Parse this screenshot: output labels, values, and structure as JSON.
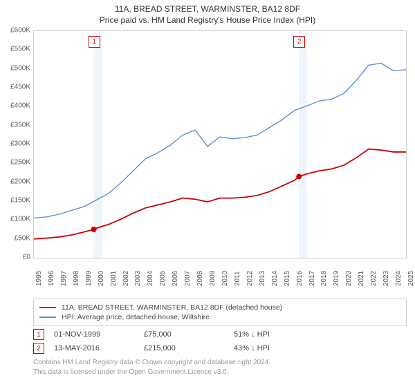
{
  "title_line1": "11A, BREAD STREET, WARMINSTER, BA12 8DF",
  "title_line2": "Price paid vs. HM Land Registry's House Price Index (HPI)",
  "chart": {
    "type": "line",
    "background_color": "#ffffff",
    "border_color": "#cccccc",
    "x_axis": {
      "min_year": 1995,
      "max_year": 2025,
      "ticks": [
        1995,
        1996,
        1997,
        1998,
        1999,
        2000,
        2001,
        2002,
        2003,
        2004,
        2005,
        2006,
        2007,
        2008,
        2009,
        2010,
        2011,
        2012,
        2013,
        2014,
        2015,
        2016,
        2017,
        2018,
        2019,
        2020,
        2021,
        2022,
        2023,
        2024,
        2025
      ],
      "label_fontsize": 10,
      "label_color": "#555555"
    },
    "y_axis": {
      "min": 0,
      "max": 600000,
      "tick_step": 50000,
      "tick_labels": [
        "£0",
        "£50K",
        "£100K",
        "£150K",
        "£200K",
        "£250K",
        "£300K",
        "£350K",
        "£400K",
        "£450K",
        "£500K",
        "£550K",
        "£600K"
      ],
      "label_fontsize": 10,
      "label_color": "#555555"
    },
    "shade_bands": [
      {
        "x_start": 1999.83,
        "x_end": 2000.5,
        "color": "#eef4fb"
      },
      {
        "x_start": 2016.37,
        "x_end": 2017.0,
        "color": "#eef4fb"
      }
    ],
    "markers": [
      {
        "id": 1,
        "year": 1999.83,
        "value": 75000,
        "color": "#cc0000"
      },
      {
        "id": 2,
        "year": 2016.37,
        "value": 215000,
        "color": "#cc0000"
      }
    ],
    "marker_radius": 4,
    "badge_border": "#cc0000",
    "badge_text_color": "#cc0000",
    "series": [
      {
        "name": "property",
        "color": "#cc0000",
        "width": 1.8,
        "points": [
          [
            1995,
            50000
          ],
          [
            1996,
            52000
          ],
          [
            1997,
            55000
          ],
          [
            1998,
            60000
          ],
          [
            1999,
            68000
          ],
          [
            1999.83,
            75000
          ],
          [
            2000,
            78000
          ],
          [
            2001,
            88000
          ],
          [
            2002,
            102000
          ],
          [
            2003,
            118000
          ],
          [
            2004,
            132000
          ],
          [
            2005,
            140000
          ],
          [
            2006,
            148000
          ],
          [
            2007,
            158000
          ],
          [
            2008,
            155000
          ],
          [
            2009,
            148000
          ],
          [
            2010,
            158000
          ],
          [
            2011,
            158000
          ],
          [
            2012,
            160000
          ],
          [
            2013,
            165000
          ],
          [
            2014,
            175000
          ],
          [
            2015,
            190000
          ],
          [
            2016,
            205000
          ],
          [
            2016.37,
            215000
          ],
          [
            2017,
            222000
          ],
          [
            2018,
            230000
          ],
          [
            2019,
            235000
          ],
          [
            2020,
            245000
          ],
          [
            2021,
            265000
          ],
          [
            2022,
            288000
          ],
          [
            2023,
            285000
          ],
          [
            2024,
            280000
          ],
          [
            2025,
            280000
          ]
        ]
      },
      {
        "name": "hpi",
        "color": "#5b8fd6",
        "width": 1.4,
        "points": [
          [
            1995,
            105000
          ],
          [
            1996,
            108000
          ],
          [
            1997,
            115000
          ],
          [
            1998,
            125000
          ],
          [
            1999,
            135000
          ],
          [
            2000,
            152000
          ],
          [
            2001,
            170000
          ],
          [
            2002,
            198000
          ],
          [
            2003,
            230000
          ],
          [
            2004,
            262000
          ],
          [
            2005,
            278000
          ],
          [
            2006,
            298000
          ],
          [
            2007,
            325000
          ],
          [
            2008,
            338000
          ],
          [
            2009,
            295000
          ],
          [
            2010,
            320000
          ],
          [
            2011,
            315000
          ],
          [
            2012,
            318000
          ],
          [
            2013,
            325000
          ],
          [
            2014,
            345000
          ],
          [
            2015,
            365000
          ],
          [
            2016,
            390000
          ],
          [
            2017,
            402000
          ],
          [
            2018,
            415000
          ],
          [
            2019,
            420000
          ],
          [
            2020,
            435000
          ],
          [
            2021,
            470000
          ],
          [
            2022,
            510000
          ],
          [
            2023,
            515000
          ],
          [
            2024,
            495000
          ],
          [
            2025,
            498000
          ]
        ]
      }
    ]
  },
  "legend": {
    "items": [
      {
        "color": "#cc0000",
        "label": "11A, BREAD STREET, WARMINSTER, BA12 8DF (detached house)"
      },
      {
        "color": "#5b8fd6",
        "label": "HPI: Average price, detached house, Wiltshire"
      }
    ]
  },
  "sales": [
    {
      "badge": "1",
      "date": "01-NOV-1999",
      "price": "£75,000",
      "delta": "51% ↓ HPI"
    },
    {
      "badge": "2",
      "date": "13-MAY-2016",
      "price": "£215,000",
      "delta": "43% ↓ HPI"
    }
  ],
  "footer": {
    "line1": "Contains HM Land Registry data © Crown copyright and database right 2024.",
    "line2": "This data is licensed under the Open Government Licence v3.0."
  }
}
